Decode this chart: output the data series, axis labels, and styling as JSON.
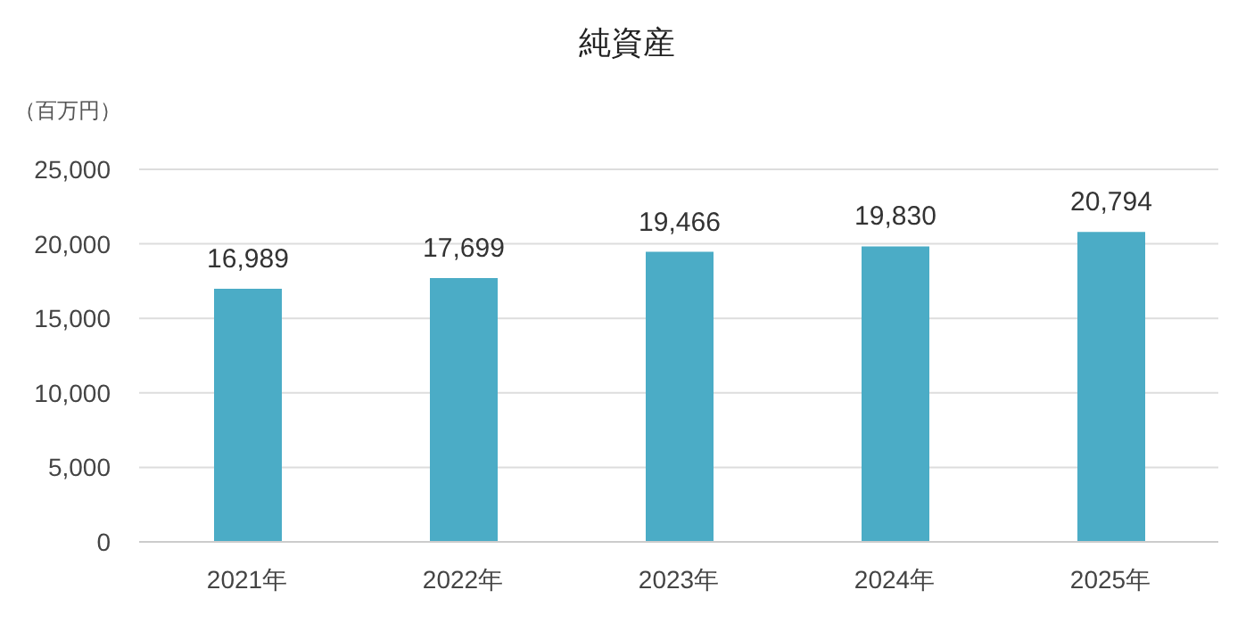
{
  "chart_data": {
    "type": "bar",
    "title": "純資産",
    "ylabel": "（百万円）",
    "categories": [
      "2021年",
      "2022年",
      "2023年",
      "2024年",
      "2025年"
    ],
    "series": [
      {
        "color": "#4bacc6",
        "values": [
          16989,
          17699,
          19466,
          19830,
          20794
        ],
        "value_labels": [
          "16,989",
          "17,699",
          "19,466",
          "19,830",
          "20,794"
        ]
      }
    ],
    "ylim": [
      0,
      25000
    ],
    "yticks": [
      {
        "value": 0,
        "label": "0"
      },
      {
        "value": 5000,
        "label": "5,000"
      },
      {
        "value": 10000,
        "label": "10,000"
      },
      {
        "value": 15000,
        "label": "15,000"
      },
      {
        "value": 20000,
        "label": "20,000"
      },
      {
        "value": 25000,
        "label": "25,000"
      }
    ],
    "grid": "y"
  }
}
